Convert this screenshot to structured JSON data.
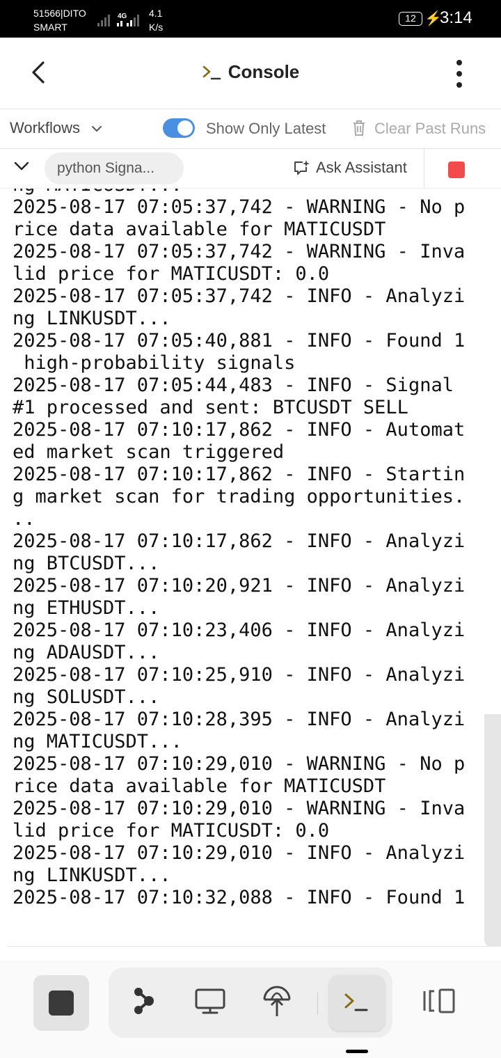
{
  "status_bar": {
    "carrier_line1": "51566|DITO",
    "carrier_line2": "SMART",
    "network_type": "4G",
    "speed_value": "4.1",
    "speed_unit": "K/s",
    "battery": "12",
    "time": "3:14"
  },
  "header": {
    "title": "Console",
    "back_icon": "chevron-left-icon",
    "menu_icon": "more-vertical-icon"
  },
  "toolbar": {
    "workflows_label": "Workflows",
    "show_latest_label": "Show Only Latest",
    "show_latest_on": true,
    "clear_label": "Clear Past Runs",
    "accent_color": "#4a90e2"
  },
  "run": {
    "name": "python Signa...",
    "assistant_label": "Ask Assistant",
    "stop_color": "#f24b4b"
  },
  "console": {
    "lines": [
      "ng MATICUSDT...",
      "2025-08-17 07:05:37,742 - WARNING - No p",
      "rice data available for MATICUSDT",
      "2025-08-17 07:05:37,742 - WARNING - Inva",
      "lid price for MATICUSDT: 0.0",
      "2025-08-17 07:05:37,742 - INFO - Analyzi",
      "ng LINKUSDT...",
      "2025-08-17 07:05:40,881 - INFO - Found 1",
      " high-probability signals",
      "2025-08-17 07:05:44,483 - INFO - Signal",
      "#1 processed and sent: BTCUSDT SELL",
      "2025-08-17 07:10:17,862 - INFO - Automat",
      "ed market scan triggered",
      "2025-08-17 07:10:17,862 - INFO - Startin",
      "g market scan for trading opportunities.",
      "..",
      "2025-08-17 07:10:17,862 - INFO - Analyzi",
      "ng BTCUSDT...",
      "2025-08-17 07:10:20,921 - INFO - Analyzi",
      "ng ETHUSDT...",
      "2025-08-17 07:10:23,406 - INFO - Analyzi",
      "ng ADAUSDT...",
      "2025-08-17 07:10:25,910 - INFO - Analyzi",
      "ng SOLUSDT...",
      "2025-08-17 07:10:28,395 - INFO - Analyzi",
      "ng MATICUSDT...",
      "2025-08-17 07:10:29,010 - WARNING - No p",
      "rice data available for MATICUSDT",
      "2025-08-17 07:10:29,010 - WARNING - Inva",
      "lid price for MATICUSDT: 0.0",
      "2025-08-17 07:10:29,010 - INFO - Analyzi",
      "ng LINKUSDT...",
      "2025-08-17 07:10:32,088 - INFO - Found 1"
    ]
  },
  "bottom_nav": {
    "items": [
      "stop-icon",
      "workflow-icon",
      "monitor-icon",
      "deploy-icon",
      "console-icon",
      "panels-icon"
    ],
    "active": "console-icon"
  }
}
